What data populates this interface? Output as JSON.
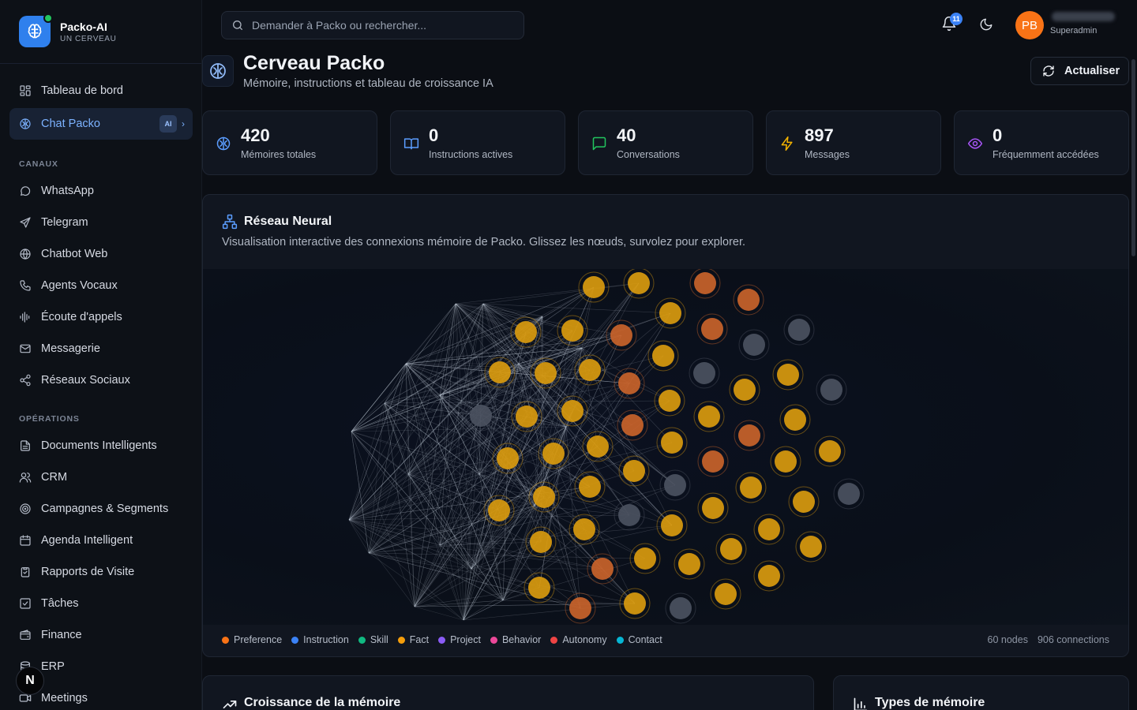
{
  "brand": {
    "name": "Packo-AI",
    "subtitle": "UN CERVEAU"
  },
  "sidebar": {
    "main_items": [
      {
        "label": "Tableau de bord",
        "icon": "dashboard-icon"
      },
      {
        "label": "Chat Packo",
        "icon": "brain-icon",
        "badge": "AI",
        "active": true
      }
    ],
    "sections": [
      {
        "title": "CANAUX",
        "items": [
          {
            "label": "WhatsApp",
            "icon": "chat-bubble-icon"
          },
          {
            "label": "Telegram",
            "icon": "send-icon"
          },
          {
            "label": "Chatbot Web",
            "icon": "globe-icon"
          },
          {
            "label": "Agents Vocaux",
            "icon": "phone-icon"
          },
          {
            "label": "Écoute d'appels",
            "icon": "audio-wave-icon"
          },
          {
            "label": "Messagerie",
            "icon": "mail-icon"
          },
          {
            "label": "Réseaux Sociaux",
            "icon": "share-icon"
          }
        ]
      },
      {
        "title": "OPÉRATIONS",
        "items": [
          {
            "label": "Documents Intelligents",
            "icon": "document-icon"
          },
          {
            "label": "CRM",
            "icon": "users-icon"
          },
          {
            "label": "Campagnes & Segments",
            "icon": "target-icon"
          },
          {
            "label": "Agenda Intelligent",
            "icon": "calendar-icon"
          },
          {
            "label": "Rapports de Visite",
            "icon": "clipboard-icon"
          },
          {
            "label": "Tâches",
            "icon": "checkbox-icon"
          },
          {
            "label": "Finance",
            "icon": "wallet-icon"
          },
          {
            "label": "ERP",
            "icon": "database-icon"
          },
          {
            "label": "Meetings",
            "icon": "video-icon"
          }
        ]
      }
    ],
    "fab_label": "N"
  },
  "topbar": {
    "search_placeholder": "Demander à Packo ou rechercher...",
    "notifications_count": "11",
    "avatar_initials": "PB",
    "user_role": "Superadmin"
  },
  "page": {
    "title": "Cerveau Packo",
    "subtitle": "Mémoire, instructions et tableau de croissance IA",
    "refresh_label": "Actualiser"
  },
  "stats": [
    {
      "value": "420",
      "label": "Mémoires totales",
      "icon": "brain-icon",
      "color": "#5b9dff"
    },
    {
      "value": "0",
      "label": "Instructions actives",
      "icon": "book-icon",
      "color": "#5b9dff"
    },
    {
      "value": "40",
      "label": "Conversations",
      "icon": "message-icon",
      "color": "#22c55e"
    },
    {
      "value": "897",
      "label": "Messages",
      "icon": "lightning-icon",
      "color": "#f5b400"
    },
    {
      "value": "0",
      "label": "Fréquemment accédées",
      "icon": "eye-icon",
      "color": "#a855f7"
    }
  ],
  "neural": {
    "title": "Réseau Neural",
    "subtitle": "Visualisation interactive des connexions mémoire de Packo. Glissez les nœuds, survolez pour explorer.",
    "nodes_label": "60 nodes",
    "connections_label": "906 connections",
    "legend": [
      {
        "label": "Preference",
        "color": "#f97316"
      },
      {
        "label": "Instruction",
        "color": "#3b82f6"
      },
      {
        "label": "Skill",
        "color": "#10b981"
      },
      {
        "label": "Fact",
        "color": "#f59e0b"
      },
      {
        "label": "Project",
        "color": "#8b5cf6"
      },
      {
        "label": "Behavior",
        "color": "#ec4899"
      },
      {
        "label": "Autonomy",
        "color": "#ef4444"
      },
      {
        "label": "Contact",
        "color": "#06b6d4"
      }
    ]
  },
  "bottom_cards": {
    "growth_title": "Croissance de la mémoire",
    "types_title": "Types de mémoire"
  },
  "colors": {
    "accent": "#3b82f6",
    "node_fact": "#d99a0e",
    "node_preference": "#c9632a",
    "node_grey": "#4b5160"
  }
}
